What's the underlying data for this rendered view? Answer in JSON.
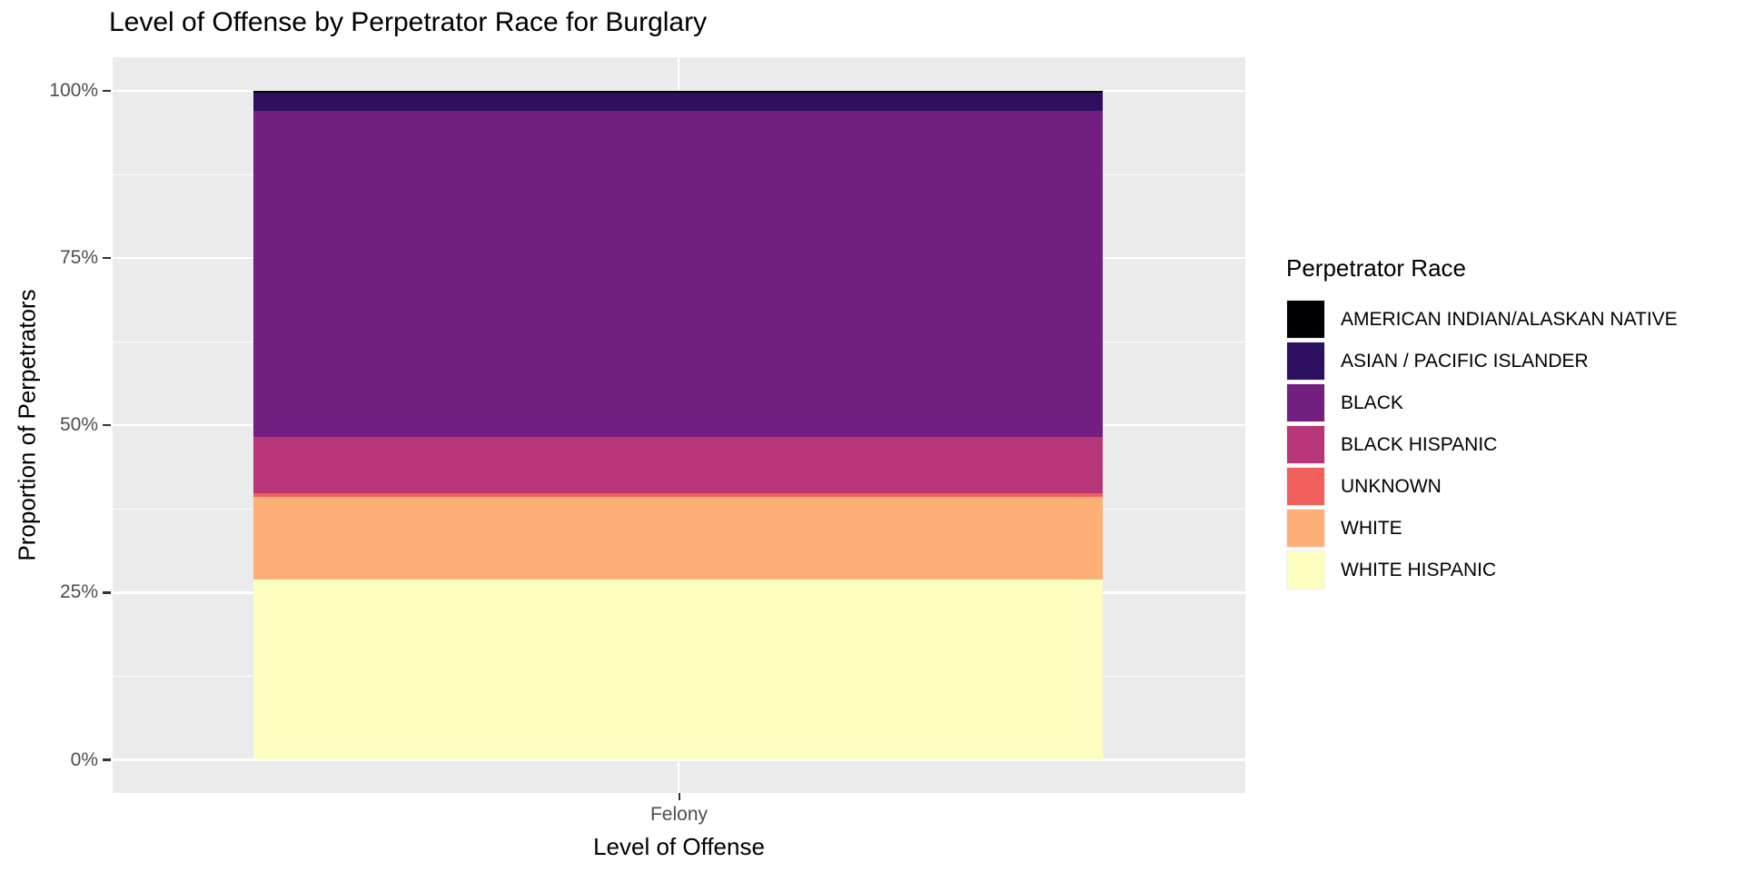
{
  "chart_data": {
    "type": "bar",
    "variant": "stacked-100-percent",
    "title": "Level of Offense by Perpetrator Race for Burglary",
    "xlabel": "Level of Offense",
    "ylabel": "Proportion of Perpetrators",
    "categories": [
      "Felony"
    ],
    "legend_title": "Perpetrator Race",
    "legend_position": "right",
    "ylim": [
      0,
      100
    ],
    "grid": true,
    "yticks": [
      {
        "value": 0,
        "label": "0%"
      },
      {
        "value": 25,
        "label": "25%"
      },
      {
        "value": 50,
        "label": "50%"
      },
      {
        "value": 75,
        "label": "75%"
      },
      {
        "value": 100,
        "label": "100%"
      }
    ],
    "minor_gridlines_at": [
      12.5,
      37.5,
      62.5,
      87.5
    ],
    "series": [
      {
        "name": "AMERICAN INDIAN/ALASKAN NATIVE",
        "color": "#000004",
        "values": [
          0.3
        ]
      },
      {
        "name": "ASIAN / PACIFIC ISLANDER",
        "color": "#2D1160",
        "values": [
          2.7
        ]
      },
      {
        "name": "BLACK",
        "color": "#721F81",
        "values": [
          48.8
        ]
      },
      {
        "name": "BLACK HISPANIC",
        "color": "#B63679",
        "values": [
          8.3
        ]
      },
      {
        "name": "UNKNOWN",
        "color": "#F1605D",
        "values": [
          0.6
        ]
      },
      {
        "name": "WHITE",
        "color": "#FEAF77",
        "values": [
          12.3
        ]
      },
      {
        "name": "WHITE HISPANIC",
        "color": "#FCFDBF",
        "values": [
          27.0
        ]
      }
    ],
    "stack_order": "first series on top",
    "colors": {
      "panel_background": "#EBEBEB",
      "gridline": "#FFFFFF",
      "tick_label": "#4D4D4D",
      "axis_title": "#000000",
      "tick_mark": "#333333"
    }
  }
}
